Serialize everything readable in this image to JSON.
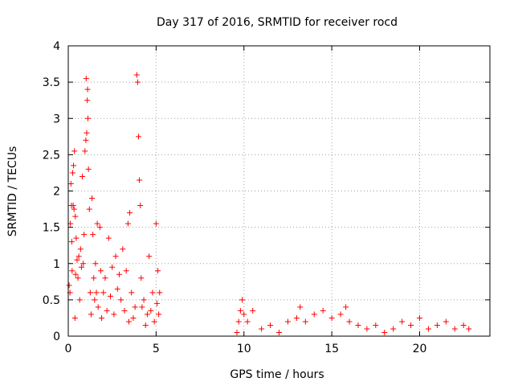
{
  "chart_data": {
    "type": "scatter",
    "title": "Day 317 of 2016, SRMTID for receiver rocd",
    "xlabel": "GPS time / hours",
    "ylabel": "SRMTID / TECUs",
    "xlim": [
      0,
      24
    ],
    "ylim": [
      0,
      4
    ],
    "xticks": [
      0,
      5,
      10,
      15,
      20
    ],
    "xtick_labels": [
      "0",
      "5",
      "10",
      "15",
      "20"
    ],
    "yticks": [
      0,
      0.5,
      1,
      1.5,
      2,
      2.5,
      3,
      3.5,
      4
    ],
    "ytick_labels": [
      "0",
      "0.5",
      "1",
      "1.5",
      "2",
      "2.5",
      "3",
      "3.5",
      "4"
    ],
    "grid": true,
    "legend": "none",
    "marker": "+",
    "colors": {
      "series": "#ff0000",
      "axes": "#000000",
      "grid": "#a0a0a0"
    },
    "series": [
      {
        "name": "SRMTID",
        "points": [
          [
            0.05,
            0.7
          ],
          [
            0.1,
            0.6
          ],
          [
            0.12,
            1.55
          ],
          [
            0.15,
            2.1
          ],
          [
            0.18,
            1.8
          ],
          [
            0.2,
            1.3
          ],
          [
            0.22,
            0.9
          ],
          [
            0.25,
            2.25
          ],
          [
            0.28,
            1.8
          ],
          [
            0.3,
            2.35
          ],
          [
            0.33,
            1.75
          ],
          [
            0.35,
            2.55
          ],
          [
            0.38,
            0.25
          ],
          [
            0.4,
            1.65
          ],
          [
            0.42,
            0.85
          ],
          [
            0.45,
            1.35
          ],
          [
            0.5,
            1.05
          ],
          [
            0.55,
            0.8
          ],
          [
            0.6,
            1.1
          ],
          [
            0.65,
            0.5
          ],
          [
            0.7,
            1.2
          ],
          [
            0.75,
            0.95
          ],
          [
            0.8,
            2.2
          ],
          [
            0.85,
            1.0
          ],
          [
            0.9,
            1.4
          ],
          [
            0.95,
            2.55
          ],
          [
            1.0,
            2.7
          ],
          [
            1.02,
            3.55
          ],
          [
            1.05,
            2.8
          ],
          [
            1.08,
            3.25
          ],
          [
            1.1,
            3.4
          ],
          [
            1.12,
            3.0
          ],
          [
            1.15,
            2.3
          ],
          [
            1.2,
            1.75
          ],
          [
            1.25,
            0.6
          ],
          [
            1.3,
            0.3
          ],
          [
            1.35,
            1.9
          ],
          [
            1.4,
            1.4
          ],
          [
            1.45,
            0.8
          ],
          [
            1.5,
            0.5
          ],
          [
            1.55,
            1.0
          ],
          [
            1.6,
            0.6
          ],
          [
            1.65,
            1.55
          ],
          [
            1.7,
            0.4
          ],
          [
            1.8,
            1.5
          ],
          [
            1.85,
            0.9
          ],
          [
            1.9,
            0.25
          ],
          [
            2.0,
            0.6
          ],
          [
            2.1,
            0.8
          ],
          [
            2.2,
            0.35
          ],
          [
            2.3,
            1.35
          ],
          [
            2.4,
            0.55
          ],
          [
            2.5,
            0.95
          ],
          [
            2.6,
            0.3
          ],
          [
            2.7,
            1.1
          ],
          [
            2.8,
            0.65
          ],
          [
            2.9,
            0.85
          ],
          [
            3.0,
            0.5
          ],
          [
            3.1,
            1.2
          ],
          [
            3.2,
            0.35
          ],
          [
            3.3,
            0.9
          ],
          [
            3.4,
            1.55
          ],
          [
            3.45,
            0.2
          ],
          [
            3.5,
            1.7
          ],
          [
            3.6,
            0.6
          ],
          [
            3.7,
            0.25
          ],
          [
            3.8,
            0.4
          ],
          [
            3.9,
            3.6
          ],
          [
            3.95,
            3.5
          ],
          [
            4.0,
            2.75
          ],
          [
            4.05,
            2.15
          ],
          [
            4.1,
            1.8
          ],
          [
            4.15,
            0.8
          ],
          [
            4.2,
            0.4
          ],
          [
            4.3,
            0.5
          ],
          [
            4.4,
            0.15
          ],
          [
            4.5,
            0.3
          ],
          [
            4.6,
            1.1
          ],
          [
            4.7,
            0.35
          ],
          [
            4.8,
            0.6
          ],
          [
            4.9,
            0.2
          ],
          [
            5.0,
            1.55
          ],
          [
            5.05,
            0.45
          ],
          [
            5.1,
            0.9
          ],
          [
            5.15,
            0.3
          ],
          [
            5.2,
            0.6
          ],
          [
            9.6,
            0.05
          ],
          [
            9.7,
            0.2
          ],
          [
            9.8,
            0.35
          ],
          [
            9.9,
            0.5
          ],
          [
            10.0,
            0.3
          ],
          [
            10.2,
            0.2
          ],
          [
            10.5,
            0.35
          ],
          [
            11.0,
            0.1
          ],
          [
            11.5,
            0.15
          ],
          [
            12.0,
            0.05
          ],
          [
            12.5,
            0.2
          ],
          [
            13.0,
            0.25
          ],
          [
            13.2,
            0.4
          ],
          [
            13.5,
            0.2
          ],
          [
            14.0,
            0.3
          ],
          [
            14.5,
            0.35
          ],
          [
            15.0,
            0.25
          ],
          [
            15.5,
            0.3
          ],
          [
            15.8,
            0.4
          ],
          [
            16.0,
            0.2
          ],
          [
            16.5,
            0.15
          ],
          [
            17.0,
            0.1
          ],
          [
            17.5,
            0.15
          ],
          [
            18.0,
            0.05
          ],
          [
            18.5,
            0.1
          ],
          [
            19.0,
            0.2
          ],
          [
            19.5,
            0.15
          ],
          [
            20.0,
            0.25
          ],
          [
            20.5,
            0.1
          ],
          [
            21.0,
            0.15
          ],
          [
            21.5,
            0.2
          ],
          [
            22.0,
            0.1
          ],
          [
            22.5,
            0.15
          ],
          [
            22.8,
            0.1
          ]
        ]
      }
    ]
  }
}
